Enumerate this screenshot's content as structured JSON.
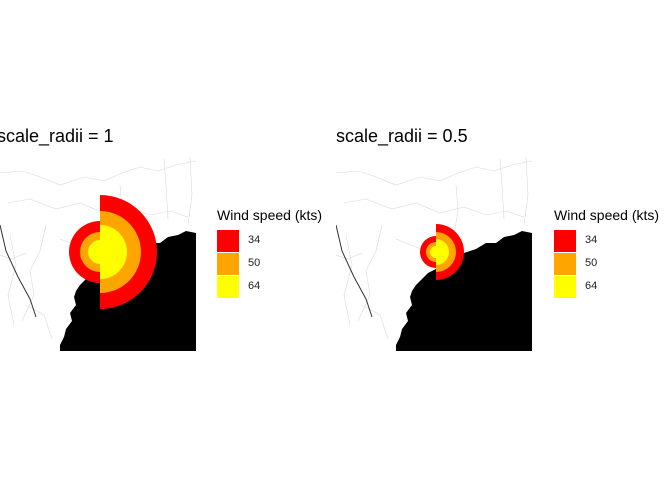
{
  "panels": [
    {
      "title": "scale_radii = 1",
      "legend": {
        "title": "Wind speed (kts)",
        "items": [
          {
            "label": "34",
            "color": "#ff0000"
          },
          {
            "label": "50",
            "color": "#ffa500"
          },
          {
            "label": "64",
            "color": "#ffff00"
          }
        ]
      }
    },
    {
      "title": "scale_radii = 0.5",
      "legend": {
        "title": "Wind speed (kts)",
        "items": [
          {
            "label": "34",
            "color": "#ff0000"
          },
          {
            "label": "50",
            "color": "#ffa500"
          },
          {
            "label": "64",
            "color": "#ffff00"
          }
        ]
      }
    }
  ],
  "map": {
    "ocean_color": "#000000",
    "land_color": "#ffffff",
    "border_color": "#d9d9d9"
  }
}
